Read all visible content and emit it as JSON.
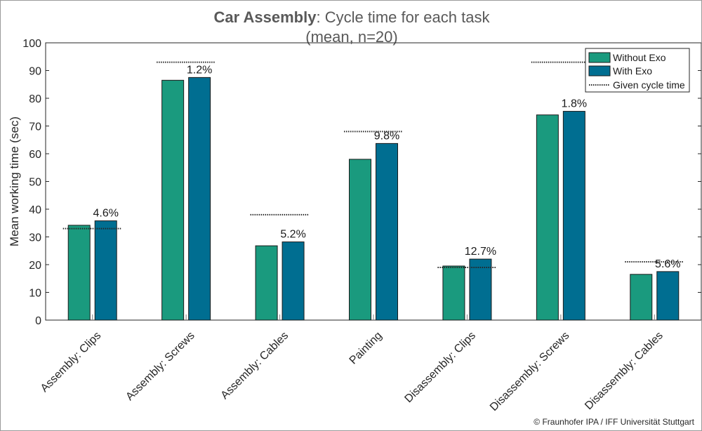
{
  "chart_data": {
    "type": "bar",
    "title_bold": "Car Assembly",
    "title_rest": ": Cycle time for each task",
    "subtitle": "(mean, n=20)",
    "xlabel": "",
    "ylabel": "Mean working time (sec)",
    "ylim": [
      0,
      100
    ],
    "yticks": [
      0,
      10,
      20,
      30,
      40,
      50,
      60,
      70,
      80,
      90,
      100
    ],
    "grid": false,
    "legend_position": "top-right",
    "categories": [
      "Assembly: Clips",
      "Assembly: Screws",
      "Assembly: Cables",
      "Painting",
      "Disassembly: Clips",
      "Disassembly: Screws",
      "Disassembly: Cables"
    ],
    "series": [
      {
        "name": "Without Exo",
        "color": "#1a9a7e",
        "values": [
          34.2,
          86.5,
          26.8,
          58.0,
          19.5,
          74.0,
          16.5
        ]
      },
      {
        "name": "With Exo",
        "color": "#006e91",
        "values": [
          35.8,
          87.5,
          28.2,
          63.7,
          22.0,
          75.3,
          17.5
        ]
      }
    ],
    "given_cycle_time": {
      "name": "Given cycle time",
      "values": [
        33.0,
        93.0,
        38.0,
        68.0,
        19.0,
        93.0,
        21.0
      ]
    },
    "increase_labels": [
      "4.6%",
      "1.2%",
      "5.2%",
      "9.8%",
      "12.7%",
      "1.8%",
      "5.6%"
    ]
  },
  "footer": {
    "copyright": "© Fraunhofer IPA / IFF Universität Stuttgart"
  }
}
